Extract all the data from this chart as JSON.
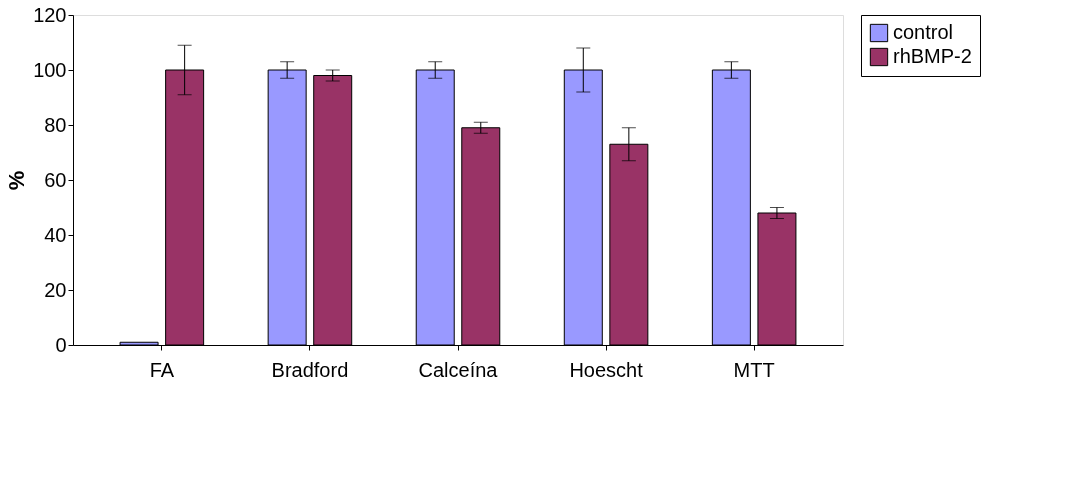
{
  "chart_data": {
    "type": "bar",
    "ylabel": "%",
    "categories": [
      "FA",
      "Bradford",
      "Calceína",
      "Hoescht",
      "MTT"
    ],
    "series": [
      {
        "name": "control",
        "color": "#9999ff",
        "values": [
          1,
          100,
          100,
          100,
          100
        ],
        "errors": [
          null,
          3,
          3,
          8,
          3
        ]
      },
      {
        "name": "rhBMP-2",
        "color": "#993366",
        "values": [
          100,
          98,
          79,
          73,
          48
        ],
        "errors": [
          9,
          2,
          2,
          6,
          2
        ]
      }
    ],
    "ylim": [
      0,
      120
    ],
    "yticks": [
      0,
      20,
      40,
      60,
      80,
      100,
      120
    ],
    "grid": false,
    "legend": "right"
  }
}
